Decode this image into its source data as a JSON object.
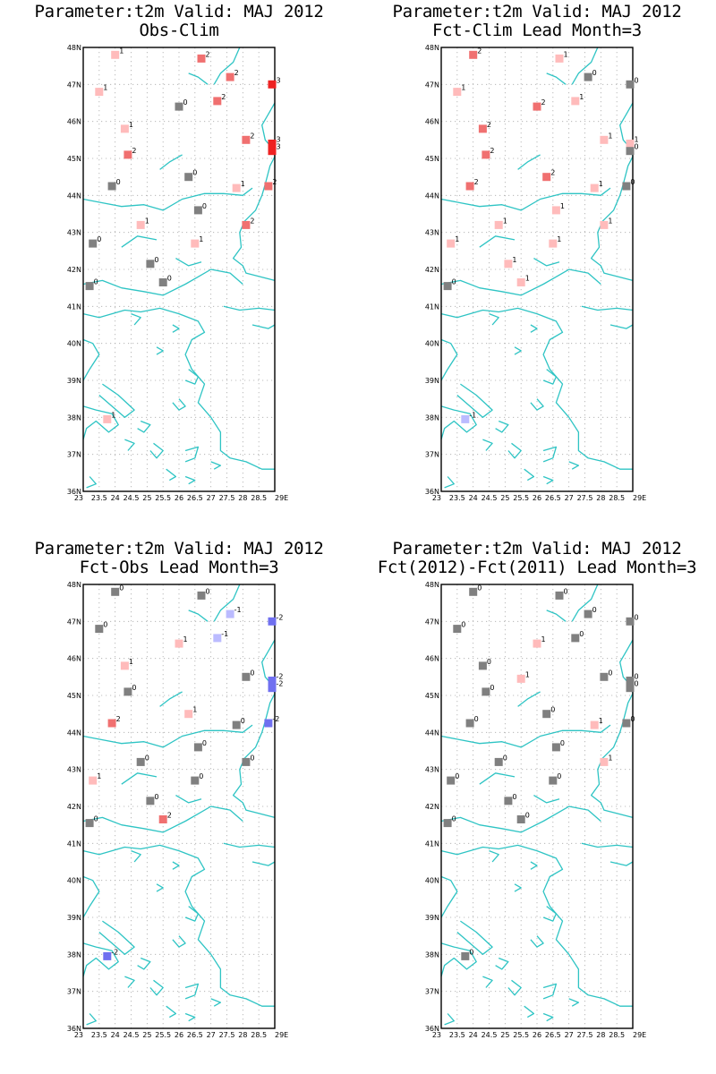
{
  "axes": {
    "lat_labels": [
      "36N",
      "37N",
      "38N",
      "39N",
      "40N",
      "41N",
      "42N",
      "43N",
      "44N",
      "45N",
      "46N",
      "47N",
      "48N"
    ],
    "lon_labels": [
      "23",
      "23.5",
      "24",
      "24.5",
      "25",
      "25.5",
      "26",
      "26.5",
      "27",
      "27.5",
      "28",
      "28.5",
      "29E"
    ],
    "lat_range": [
      36,
      48
    ],
    "lon_range": [
      23,
      29
    ]
  },
  "colors": {
    "coast": "#2ec4c4",
    "frame": "#000000",
    "grid": "#aaaaaa",
    "legend_scale": {
      "-2": "#7070f0",
      "-1": "#bbbbff",
      "0": "#808080",
      "1": "#ffbbbb",
      "2": "#f07070",
      "3": "#ee2222"
    }
  },
  "panels": [
    {
      "title1": "Parameter:t2m Valid: MAJ 2012",
      "title2": "Obs-Clim",
      "points": [
        {
          "lon": 24.0,
          "lat": 47.8,
          "v": 1
        },
        {
          "lon": 26.7,
          "lat": 47.7,
          "v": 2
        },
        {
          "lon": 27.6,
          "lat": 47.2,
          "v": 2
        },
        {
          "lon": 29.0,
          "lat": 47.0,
          "v": 3
        },
        {
          "lon": 23.5,
          "lat": 46.8,
          "v": 1
        },
        {
          "lon": 27.2,
          "lat": 46.55,
          "v": 2
        },
        {
          "lon": 26.0,
          "lat": 46.4,
          "v": 0
        },
        {
          "lon": 24.3,
          "lat": 45.8,
          "v": 1
        },
        {
          "lon": 28.1,
          "lat": 45.5,
          "v": 2
        },
        {
          "lon": 29.0,
          "lat": 45.4,
          "v": 3
        },
        {
          "lon": 28.95,
          "lat": 45.2,
          "v": 3
        },
        {
          "lon": 24.4,
          "lat": 45.1,
          "v": 2
        },
        {
          "lon": 26.3,
          "lat": 44.5,
          "v": 0
        },
        {
          "lon": 23.9,
          "lat": 44.25,
          "v": 0
        },
        {
          "lon": 27.8,
          "lat": 44.2,
          "v": 1
        },
        {
          "lon": 28.8,
          "lat": 44.25,
          "v": 2
        },
        {
          "lon": 26.6,
          "lat": 43.6,
          "v": 0
        },
        {
          "lon": 24.8,
          "lat": 43.2,
          "v": 1
        },
        {
          "lon": 28.1,
          "lat": 43.2,
          "v": 2
        },
        {
          "lon": 23.3,
          "lat": 42.7,
          "v": 0
        },
        {
          "lon": 26.5,
          "lat": 42.7,
          "v": 1
        },
        {
          "lon": 25.1,
          "lat": 42.15,
          "v": 0
        },
        {
          "lon": 25.5,
          "lat": 41.65,
          "v": 0
        },
        {
          "lon": 23.2,
          "lat": 41.55,
          "v": 0
        },
        {
          "lon": 23.75,
          "lat": 37.95,
          "v": 1
        }
      ]
    },
    {
      "title1": "Parameter:t2m Valid: MAJ 2012",
      "title2": "Fct-Clim Lead Month=3",
      "points": [
        {
          "lon": 24.0,
          "lat": 47.8,
          "v": 2
        },
        {
          "lon": 26.7,
          "lat": 47.7,
          "v": 1
        },
        {
          "lon": 27.6,
          "lat": 47.2,
          "v": 0
        },
        {
          "lon": 29.0,
          "lat": 47.0,
          "v": 0
        },
        {
          "lon": 23.5,
          "lat": 46.8,
          "v": 1
        },
        {
          "lon": 27.2,
          "lat": 46.55,
          "v": 1
        },
        {
          "lon": 26.0,
          "lat": 46.4,
          "v": 2
        },
        {
          "lon": 24.3,
          "lat": 45.8,
          "v": 2
        },
        {
          "lon": 28.1,
          "lat": 45.5,
          "v": 1
        },
        {
          "lon": 29.0,
          "lat": 45.4,
          "v": 1
        },
        {
          "lon": 28.95,
          "lat": 45.2,
          "v": 0
        },
        {
          "lon": 24.4,
          "lat": 45.1,
          "v": 2
        },
        {
          "lon": 26.3,
          "lat": 44.5,
          "v": 2
        },
        {
          "lon": 23.9,
          "lat": 44.25,
          "v": 2
        },
        {
          "lon": 27.8,
          "lat": 44.2,
          "v": 1
        },
        {
          "lon": 28.8,
          "lat": 44.25,
          "v": 0
        },
        {
          "lon": 26.6,
          "lat": 43.6,
          "v": 1
        },
        {
          "lon": 24.8,
          "lat": 43.2,
          "v": 1
        },
        {
          "lon": 28.1,
          "lat": 43.2,
          "v": 1
        },
        {
          "lon": 23.3,
          "lat": 42.7,
          "v": 1
        },
        {
          "lon": 26.5,
          "lat": 42.7,
          "v": 1
        },
        {
          "lon": 25.1,
          "lat": 42.15,
          "v": 1
        },
        {
          "lon": 25.5,
          "lat": 41.65,
          "v": 1
        },
        {
          "lon": 23.2,
          "lat": 41.55,
          "v": 0
        },
        {
          "lon": 23.75,
          "lat": 37.95,
          "v": -1
        }
      ]
    },
    {
      "title1": "Parameter:t2m Valid: MAJ 2012",
      "title2": "Fct-Obs Lead Month=3",
      "points": [
        {
          "lon": 24.0,
          "lat": 47.8,
          "v": 0
        },
        {
          "lon": 26.7,
          "lat": 47.7,
          "v": 0
        },
        {
          "lon": 27.6,
          "lat": 47.2,
          "v": -1
        },
        {
          "lon": 29.0,
          "lat": 47.0,
          "v": -2
        },
        {
          "lon": 23.5,
          "lat": 46.8,
          "v": 0
        },
        {
          "lon": 27.2,
          "lat": 46.55,
          "v": -1
        },
        {
          "lon": 26.0,
          "lat": 46.4,
          "v": 1
        },
        {
          "lon": 24.3,
          "lat": 45.8,
          "v": 1
        },
        {
          "lon": 28.1,
          "lat": 45.5,
          "v": 0
        },
        {
          "lon": 29.0,
          "lat": 45.4,
          "v": -2
        },
        {
          "lon": 28.95,
          "lat": 45.2,
          "v": -2
        },
        {
          "lon": 24.4,
          "lat": 45.1,
          "v": 0
        },
        {
          "lon": 26.3,
          "lat": 44.5,
          "v": 1
        },
        {
          "lon": 23.9,
          "lat": 44.25,
          "v": 2
        },
        {
          "lon": 27.8,
          "lat": 44.2,
          "v": 0
        },
        {
          "lon": 28.8,
          "lat": 44.25,
          "v": -2
        },
        {
          "lon": 26.6,
          "lat": 43.6,
          "v": 0
        },
        {
          "lon": 24.8,
          "lat": 43.2,
          "v": 0
        },
        {
          "lon": 28.1,
          "lat": 43.2,
          "v": 0
        },
        {
          "lon": 23.3,
          "lat": 42.7,
          "v": 1
        },
        {
          "lon": 26.5,
          "lat": 42.7,
          "v": 0
        },
        {
          "lon": 25.1,
          "lat": 42.15,
          "v": 0
        },
        {
          "lon": 25.5,
          "lat": 41.65,
          "v": 2
        },
        {
          "lon": 23.2,
          "lat": 41.55,
          "v": 0
        },
        {
          "lon": 23.75,
          "lat": 37.95,
          "v": -2
        }
      ]
    },
    {
      "title1": "Parameter:t2m Valid: MAJ 2012",
      "title2": "Fct(2012)-Fct(2011) Lead Month=3",
      "points": [
        {
          "lon": 24.0,
          "lat": 47.8,
          "v": 0
        },
        {
          "lon": 26.7,
          "lat": 47.7,
          "v": 0
        },
        {
          "lon": 27.6,
          "lat": 47.2,
          "v": 0
        },
        {
          "lon": 29.0,
          "lat": 47.0,
          "v": 0
        },
        {
          "lon": 23.5,
          "lat": 46.8,
          "v": 0
        },
        {
          "lon": 27.2,
          "lat": 46.55,
          "v": 0
        },
        {
          "lon": 26.0,
          "lat": 46.4,
          "v": 1
        },
        {
          "lon": 24.3,
          "lat": 45.8,
          "v": 0
        },
        {
          "lon": 28.1,
          "lat": 45.5,
          "v": 0
        },
        {
          "lon": 29.0,
          "lat": 45.4,
          "v": 0
        },
        {
          "lon": 28.95,
          "lat": 45.2,
          "v": 0
        },
        {
          "lon": 24.4,
          "lat": 45.1,
          "v": 0
        },
        {
          "lon": 25.5,
          "lat": 45.45,
          "v": 1
        },
        {
          "lon": 26.3,
          "lat": 44.5,
          "v": 0
        },
        {
          "lon": 23.9,
          "lat": 44.25,
          "v": 0
        },
        {
          "lon": 27.8,
          "lat": 44.2,
          "v": 1
        },
        {
          "lon": 28.8,
          "lat": 44.25,
          "v": 0
        },
        {
          "lon": 26.6,
          "lat": 43.6,
          "v": 0
        },
        {
          "lon": 24.8,
          "lat": 43.2,
          "v": 0
        },
        {
          "lon": 28.1,
          "lat": 43.2,
          "v": 1
        },
        {
          "lon": 23.3,
          "lat": 42.7,
          "v": 0
        },
        {
          "lon": 26.5,
          "lat": 42.7,
          "v": 0
        },
        {
          "lon": 25.1,
          "lat": 42.15,
          "v": 0
        },
        {
          "lon": 25.5,
          "lat": 41.65,
          "v": 0
        },
        {
          "lon": 23.2,
          "lat": 41.55,
          "v": 0
        },
        {
          "lon": 23.75,
          "lat": 37.95,
          "v": 0
        }
      ]
    }
  ]
}
